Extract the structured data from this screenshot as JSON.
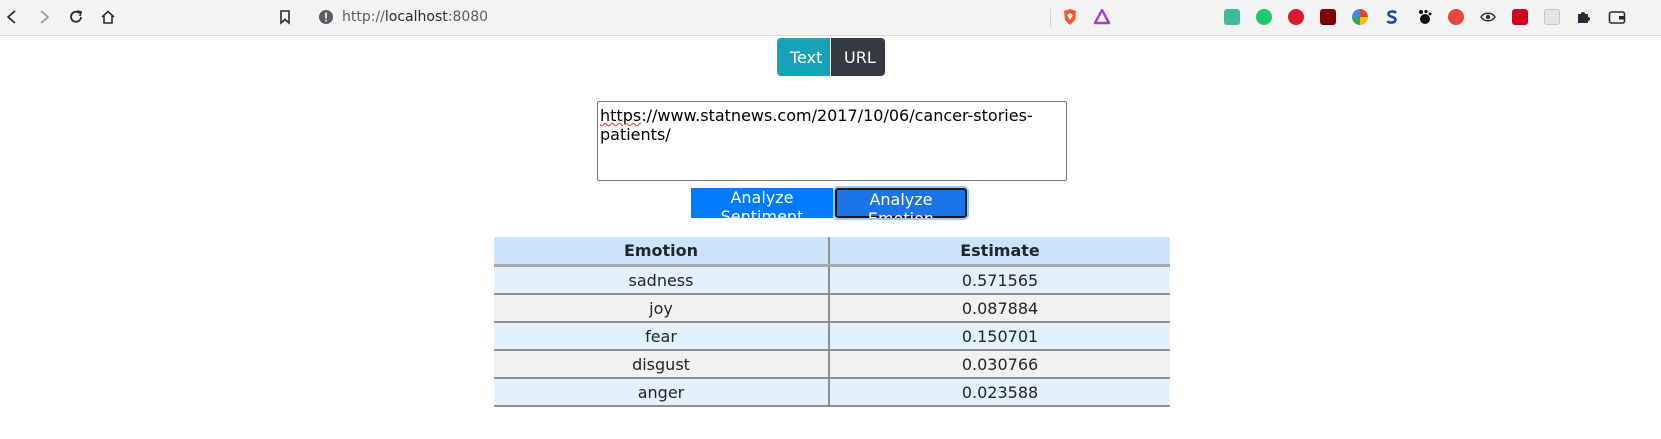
{
  "browser": {
    "url_scheme": "http://",
    "url_host": "localhost",
    "url_port": ":8080"
  },
  "mode_toggle": {
    "text_label": "Text",
    "url_label": "URL"
  },
  "input": {
    "value_squiggled": "https",
    "value_rest": "://www.statnews.com/2017/10/06/cancer-stories-patients/"
  },
  "actions": {
    "sentiment_label": "Analyze Sentiment",
    "emotion_label": "Analyze Emotion"
  },
  "table": {
    "headers": [
      "Emotion",
      "Estimate"
    ],
    "rows": [
      {
        "emotion": "sadness",
        "estimate": "0.571565"
      },
      {
        "emotion": "joy",
        "estimate": "0.087884"
      },
      {
        "emotion": "fear",
        "estimate": "0.150701"
      },
      {
        "emotion": "disgust",
        "estimate": "0.030766"
      },
      {
        "emotion": "anger",
        "estimate": "0.023588"
      }
    ]
  },
  "colors": {
    "text_button": "#17a2b8",
    "url_button": "#343a40",
    "analyze_button": "#007bff",
    "table_header": "#cce4fb",
    "row_blue": "#e3f0fd",
    "row_grey": "#f1f1f1"
  }
}
